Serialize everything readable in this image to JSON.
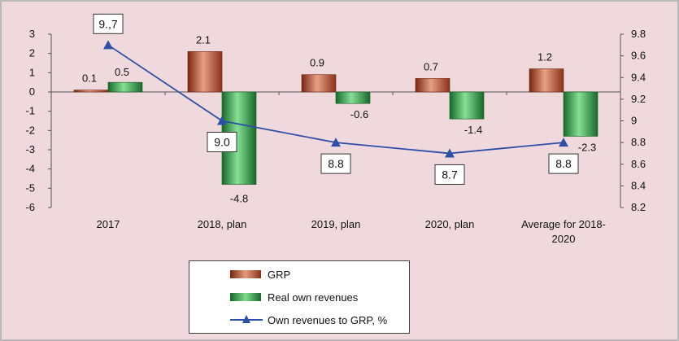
{
  "chart_data": {
    "type": "bar",
    "categories": [
      "2017",
      "2018, plan",
      "2019, plan",
      "2020, plan",
      "Average for 2018-2020"
    ],
    "category_lines": [
      [
        "2017"
      ],
      [
        "2018, plan"
      ],
      [
        "2019, plan"
      ],
      [
        "2020, plan"
      ],
      [
        "Average for 2018-",
        "2020"
      ]
    ],
    "series": [
      {
        "name": "GRP",
        "type": "bar",
        "axis": "left",
        "values": [
          0.1,
          2.1,
          0.9,
          0.7,
          1.2
        ],
        "labels": [
          "0.1",
          "2.1",
          "0.9",
          "0.7",
          "1.2"
        ],
        "color": "#c0502f"
      },
      {
        "name": "Real own revenues",
        "type": "bar",
        "axis": "left",
        "values": [
          0.5,
          -4.8,
          -0.6,
          -1.4,
          -2.3
        ],
        "labels": [
          "0.5",
          "-4.8",
          "-0.6",
          "-1.4",
          "-2.3"
        ],
        "color": "#2e9e3d"
      },
      {
        "name": "Own revenues to GRP, %",
        "type": "line",
        "axis": "right",
        "values": [
          9.7,
          9.0,
          8.8,
          8.7,
          8.8
        ],
        "labels": [
          "9.,7",
          "9.0",
          "8.8",
          "8.7",
          "8.8"
        ],
        "color": "#2e4fa8"
      }
    ],
    "y_left": {
      "range": [
        -6,
        3
      ],
      "ticks": [
        "3",
        "2",
        "1",
        "0",
        "-1",
        "-2",
        "-3",
        "-4",
        "-5",
        "-6"
      ]
    },
    "y_right": {
      "range": [
        8.2,
        9.8
      ],
      "ticks": [
        "9.8",
        "9.6",
        "9.4",
        "9.2",
        "9",
        "8.8",
        "8.6",
        "8.4",
        "8.2"
      ]
    },
    "grid": false,
    "legend_position": "bottom-center"
  }
}
